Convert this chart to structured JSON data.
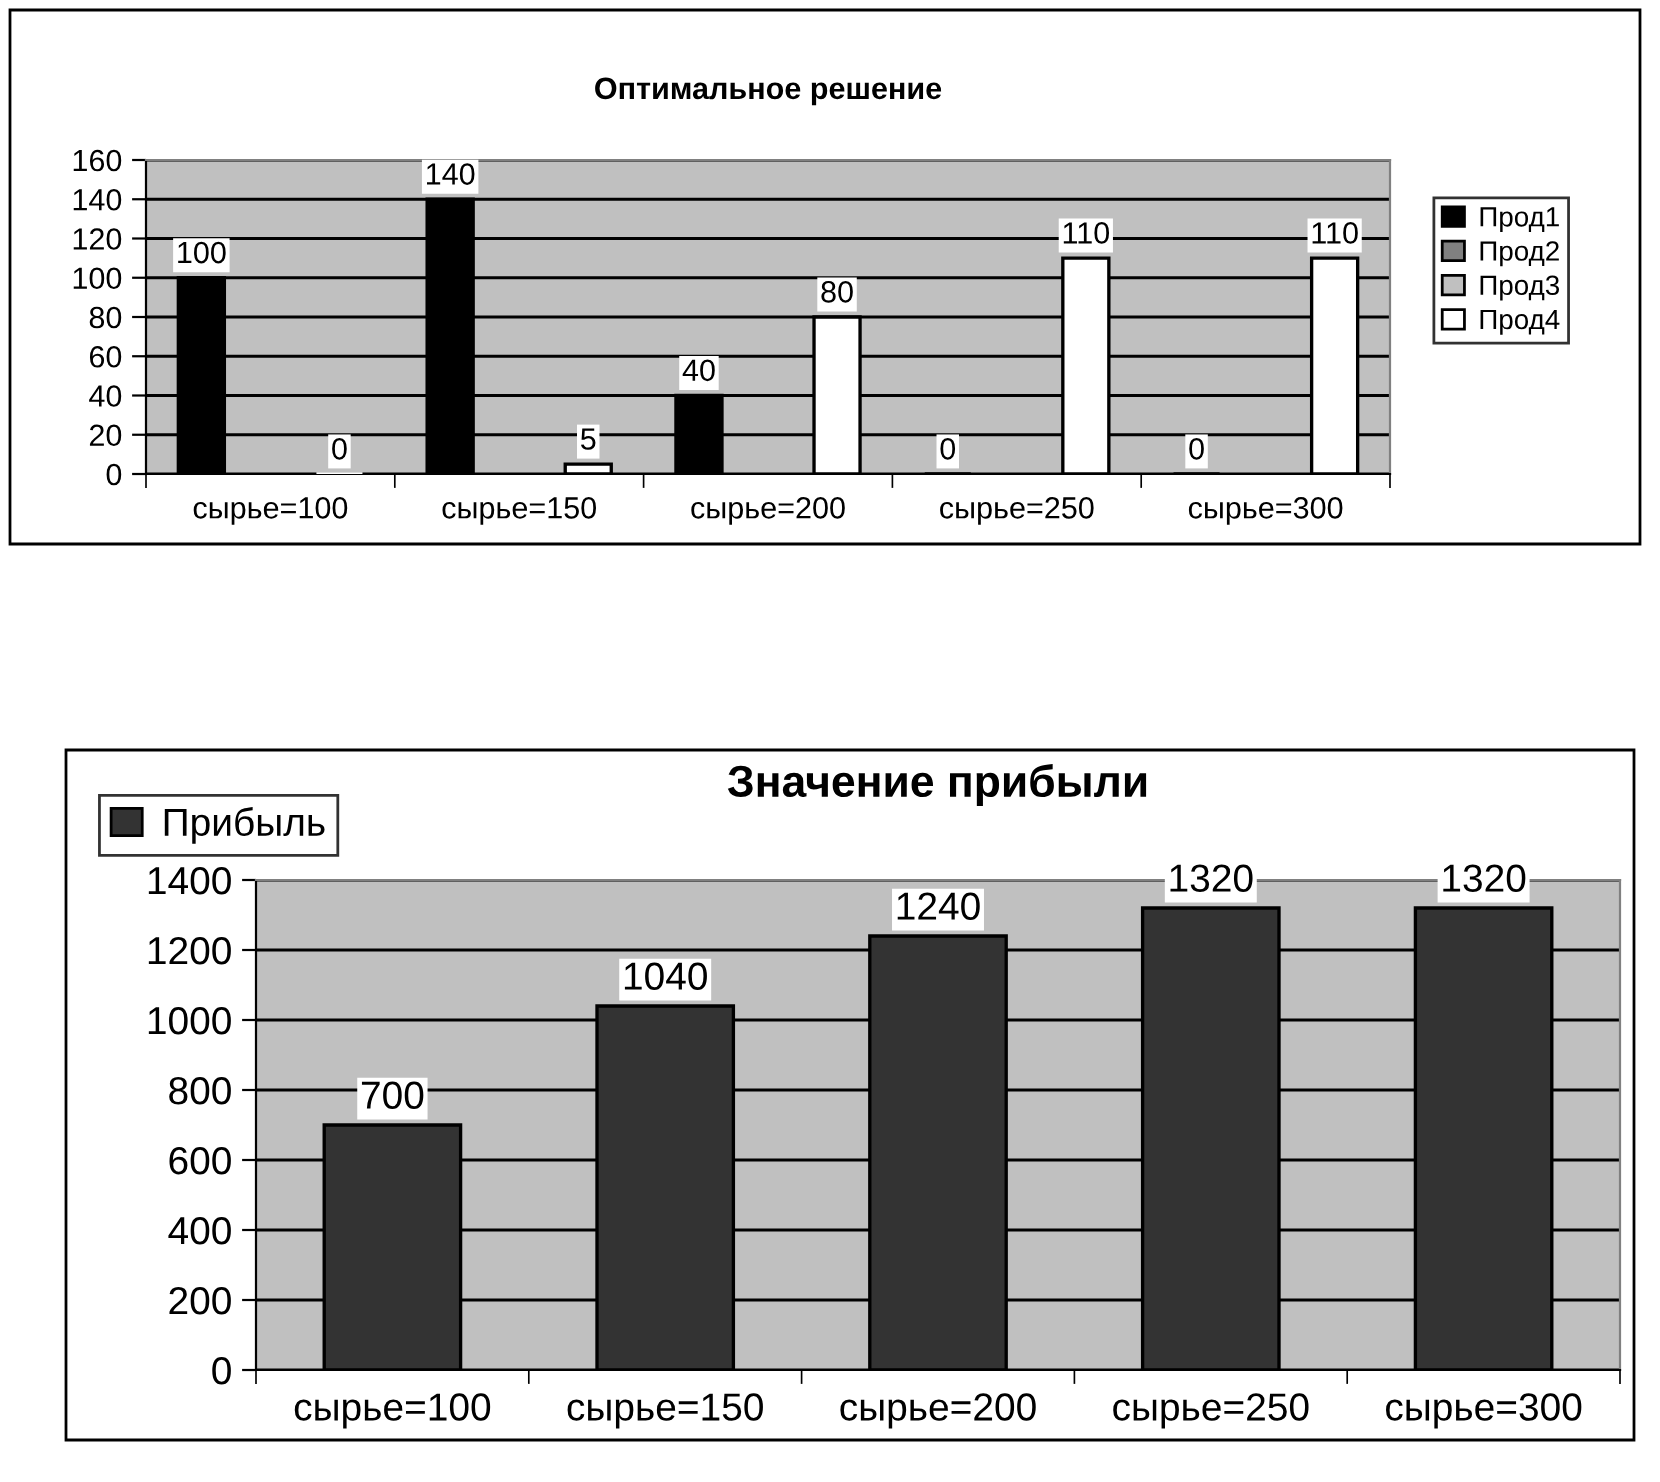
{
  "chart_data": [
    {
      "type": "bar",
      "title": "Оптимальное решение",
      "categories": [
        "сырье=100",
        "сырье=150",
        "сырье=200",
        "сырье=250",
        "сырье=300"
      ],
      "series": [
        {
          "name": "Прод1",
          "color": "#000000",
          "values": [
            100,
            140,
            40,
            0,
            0
          ]
        },
        {
          "name": "Прод2",
          "color": "#808080",
          "values": [
            null,
            null,
            null,
            null,
            null
          ]
        },
        {
          "name": "Прод3",
          "color": "#c0c0c0",
          "values": [
            null,
            null,
            null,
            null,
            null
          ]
        },
        {
          "name": "Прод4",
          "color": "#ffffff",
          "values": [
            0,
            5,
            80,
            110,
            110
          ]
        }
      ],
      "ylim": [
        0,
        160
      ],
      "yticks": [
        0,
        20,
        40,
        60,
        80,
        100,
        120,
        140,
        160
      ],
      "grid": "y",
      "legend": "right",
      "data_labels": true
    },
    {
      "type": "bar",
      "title": "Значение прибыли",
      "categories": [
        "сырье=100",
        "сырье=150",
        "сырье=200",
        "сырье=250",
        "сырье=300"
      ],
      "series": [
        {
          "name": "Прибыль",
          "color": "#333333",
          "values": [
            700,
            1040,
            1240,
            1320,
            1320
          ]
        }
      ],
      "ylim": [
        0,
        1400
      ],
      "yticks": [
        0,
        200,
        400,
        600,
        800,
        1000,
        1200,
        1400
      ],
      "grid": "y",
      "legend": "top left",
      "data_labels": true
    }
  ]
}
